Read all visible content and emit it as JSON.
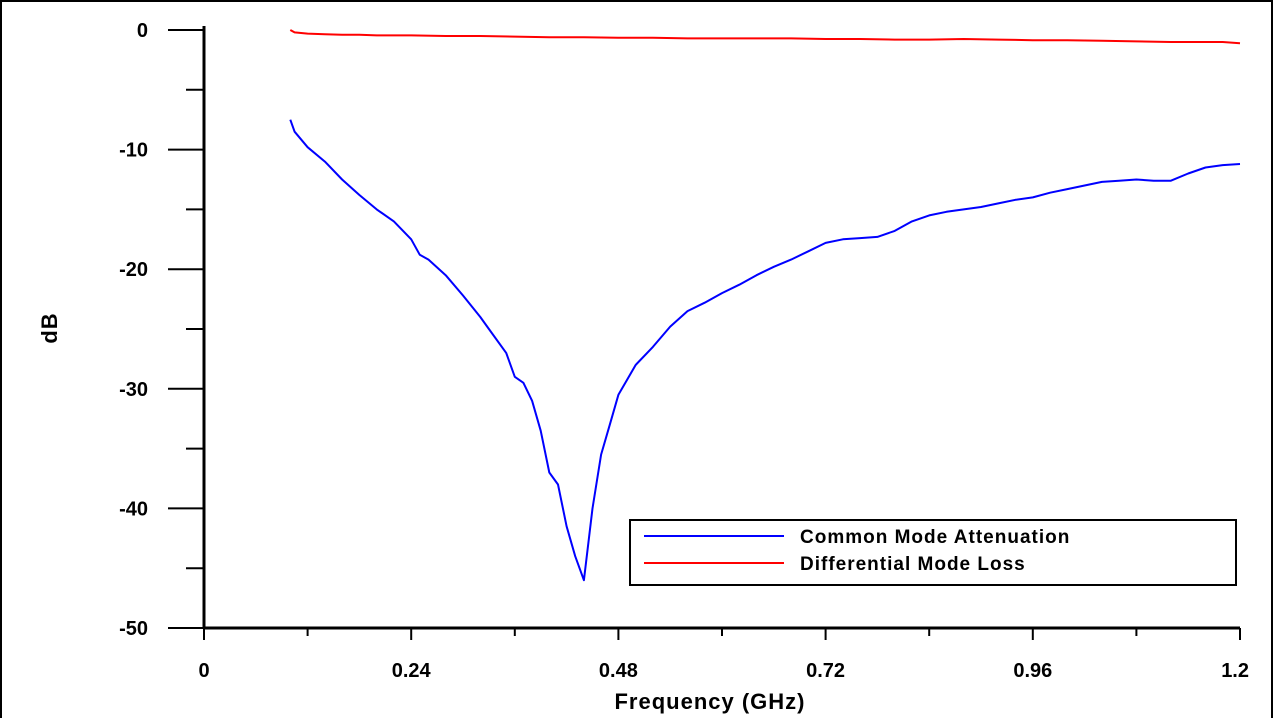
{
  "chart_data": {
    "type": "line",
    "xlabel": "Frequency (GHz)",
    "ylabel": "dB",
    "xlim": [
      0,
      1.2
    ],
    "ylim": [
      -50,
      0
    ],
    "x_ticks": [
      0,
      0.24,
      0.48,
      0.72,
      0.96,
      1.2
    ],
    "x_tick_labels": [
      "0",
      "0.24",
      "0.48",
      "0.72",
      "0.96",
      "1.2"
    ],
    "y_ticks": [
      0,
      -10,
      -20,
      -30,
      -40,
      -50
    ],
    "y_tick_labels": [
      "0",
      "-10",
      "-20",
      "-30",
      "-40",
      "-50"
    ],
    "grid": false,
    "legend_position": "bottom-right",
    "series": [
      {
        "name": "Common Mode Attenuation",
        "color": "#0000ff",
        "x": [
          0.1,
          0.105,
          0.12,
          0.14,
          0.16,
          0.18,
          0.2,
          0.22,
          0.24,
          0.25,
          0.26,
          0.28,
          0.3,
          0.32,
          0.33,
          0.35,
          0.36,
          0.37,
          0.38,
          0.39,
          0.4,
          0.41,
          0.42,
          0.43,
          0.44,
          0.45,
          0.46,
          0.47,
          0.48,
          0.5,
          0.52,
          0.54,
          0.56,
          0.58,
          0.6,
          0.62,
          0.64,
          0.66,
          0.68,
          0.7,
          0.72,
          0.74,
          0.76,
          0.78,
          0.8,
          0.82,
          0.84,
          0.86,
          0.88,
          0.9,
          0.92,
          0.94,
          0.96,
          0.98,
          1.0,
          1.02,
          1.04,
          1.06,
          1.08,
          1.1,
          1.12,
          1.14,
          1.16,
          1.18,
          1.2
        ],
        "y": [
          -7.5,
          -8.5,
          -9.8,
          -11.0,
          -12.5,
          -13.8,
          -15.0,
          -16.0,
          -17.5,
          -18.8,
          -19.2,
          -20.5,
          -22.2,
          -24.0,
          -25.0,
          -27.0,
          -29.0,
          -29.5,
          -31.0,
          -33.5,
          -37.0,
          -38.0,
          -41.5,
          -44.0,
          -46.0,
          -40.0,
          -35.5,
          -33.0,
          -30.5,
          -28.0,
          -26.5,
          -24.8,
          -23.5,
          -22.8,
          -22.0,
          -21.3,
          -20.5,
          -19.8,
          -19.2,
          -18.5,
          -17.8,
          -17.5,
          -17.4,
          -17.3,
          -16.8,
          -16.0,
          -15.5,
          -15.2,
          -15.0,
          -14.8,
          -14.5,
          -14.2,
          -14.0,
          -13.6,
          -13.3,
          -13.0,
          -12.7,
          -12.6,
          -12.5,
          -12.6,
          -12.6,
          -12.0,
          -11.5,
          -11.3,
          -11.2
        ]
      },
      {
        "name": "Differential Mode Loss",
        "color": "#ff0000",
        "x": [
          0.1,
          0.105,
          0.12,
          0.14,
          0.16,
          0.18,
          0.2,
          0.24,
          0.28,
          0.32,
          0.36,
          0.4,
          0.44,
          0.48,
          0.52,
          0.56,
          0.6,
          0.64,
          0.68,
          0.72,
          0.76,
          0.8,
          0.84,
          0.88,
          0.92,
          0.96,
          1.0,
          1.04,
          1.08,
          1.12,
          1.16,
          1.18,
          1.2
        ],
        "y": [
          0.0,
          -0.2,
          -0.3,
          -0.35,
          -0.4,
          -0.4,
          -0.45,
          -0.45,
          -0.5,
          -0.5,
          -0.55,
          -0.6,
          -0.6,
          -0.65,
          -0.65,
          -0.7,
          -0.7,
          -0.7,
          -0.7,
          -0.75,
          -0.75,
          -0.8,
          -0.8,
          -0.75,
          -0.8,
          -0.85,
          -0.85,
          -0.9,
          -0.95,
          -1.0,
          -1.0,
          -1.0,
          -1.1
        ]
      }
    ]
  }
}
